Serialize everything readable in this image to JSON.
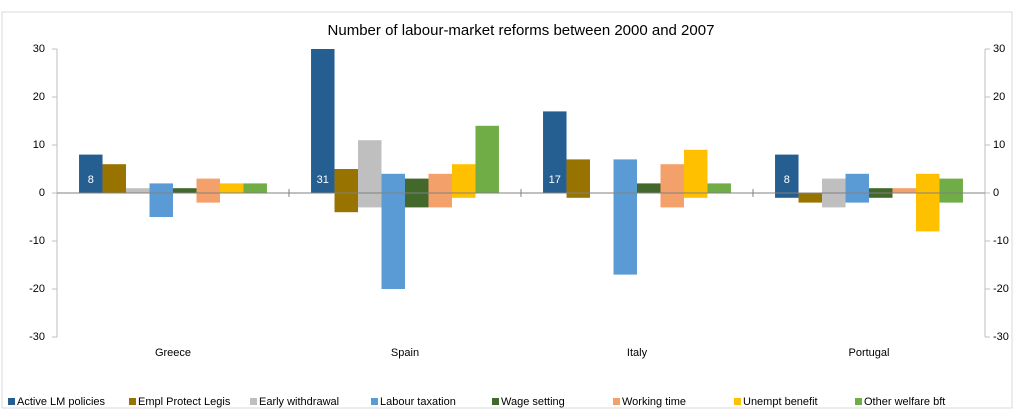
{
  "chart_data": {
    "type": "bar",
    "title": "Number of labour-market reforms between 2000 and 2007",
    "categories": [
      "Greece",
      "Spain",
      "Italy",
      "Portugal"
    ],
    "series": [
      {
        "name": "Active LM policies",
        "color": "#255e91",
        "values": [
          8,
          31,
          17,
          8
        ],
        "negative_values": [
          0,
          0,
          0,
          -1
        ],
        "labels": true
      },
      {
        "name": "Empl Protect Legis",
        "color": "#997300",
        "values": [
          6,
          5,
          7,
          0
        ],
        "negative_values": [
          0,
          -4,
          -1,
          -2
        ]
      },
      {
        "name": "Early withdrawal",
        "color": "#bfbfbf",
        "values": [
          1,
          11,
          0,
          3
        ],
        "negative_values": [
          0,
          -3,
          0,
          -3
        ]
      },
      {
        "name": "Labour taxation",
        "color": "#5b9bd5",
        "values": [
          2,
          4,
          7,
          4
        ],
        "negative_values": [
          -5,
          -20,
          -17,
          -2
        ]
      },
      {
        "name": "Wage setting",
        "color": "#43682b",
        "values": [
          1,
          3,
          2,
          1
        ],
        "negative_values": [
          0,
          -3,
          0,
          -1
        ]
      },
      {
        "name": "Working time",
        "color": "#f4a06b",
        "values": [
          3,
          4,
          6,
          1
        ],
        "negative_values": [
          -2,
          -3,
          -3,
          0
        ]
      },
      {
        "name": "Unempt benefit",
        "color": "#ffc000",
        "values": [
          2,
          6,
          9,
          4
        ],
        "negative_values": [
          0,
          -1,
          -1,
          -8
        ]
      },
      {
        "name": "Other welfare bft",
        "color": "#70ad47",
        "values": [
          2,
          14,
          2,
          3
        ],
        "negative_values": [
          0,
          0,
          0,
          -2
        ]
      }
    ],
    "ylim": [
      -30,
      30
    ],
    "yticks": [
      -30,
      -20,
      -10,
      0,
      10,
      20,
      30
    ],
    "y2lim": [
      -30,
      30
    ],
    "y2ticks": [
      -30,
      -20,
      -10,
      0,
      10,
      20,
      30
    ],
    "legend": "bottom"
  }
}
